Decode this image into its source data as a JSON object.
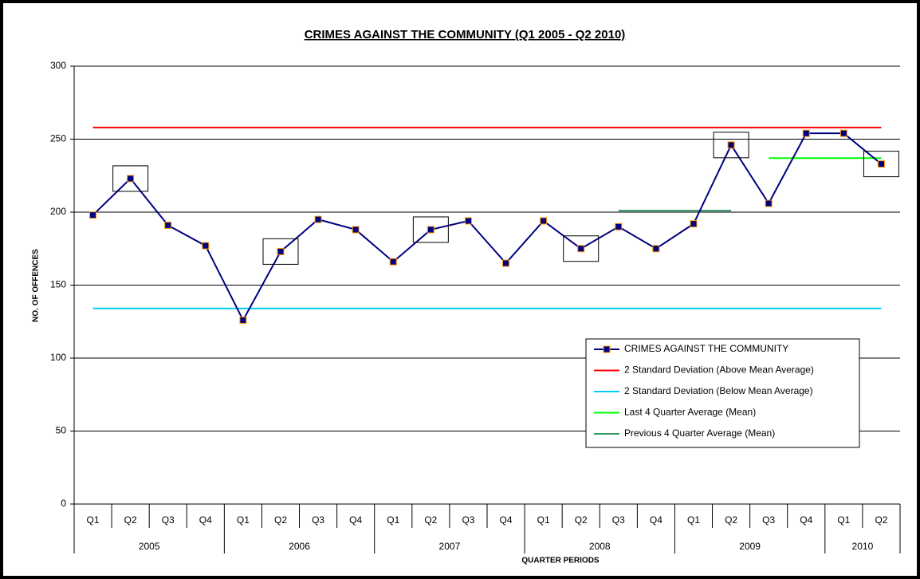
{
  "chart_data": {
    "type": "line",
    "title": "CRIMES AGAINST THE COMMUNITY (Q1 2005 - Q2 2010)",
    "x_label": "QUARTER PERIODS",
    "y_label": "NO. OF OFFENCES",
    "groups": [
      {
        "label": "2005",
        "categories": [
          "Q1",
          "Q2",
          "Q3",
          "Q4"
        ]
      },
      {
        "label": "2006",
        "categories": [
          "Q1",
          "Q2",
          "Q3",
          "Q4"
        ]
      },
      {
        "label": "2007",
        "categories": [
          "Q1",
          "Q2",
          "Q3",
          "Q4"
        ]
      },
      {
        "label": "2008",
        "categories": [
          "Q1",
          "Q2",
          "Q3",
          "Q4"
        ]
      },
      {
        "label": "2009",
        "categories": [
          "Q1",
          "Q2",
          "Q3",
          "Q4"
        ]
      },
      {
        "label": "2010",
        "categories": [
          "Q1",
          "Q2"
        ]
      }
    ],
    "series": [
      {
        "name": "CRIMES AGAINST THE COMMUNITY",
        "color": "#000080",
        "marker_edge": "#ff9900",
        "values": [
          198,
          223,
          191,
          177,
          126,
          173,
          195,
          188,
          166,
          188,
          194,
          165,
          194,
          175,
          190,
          175,
          192,
          246,
          206,
          254,
          254,
          233
        ]
      },
      {
        "name": "2 Standard Deviation (Above Mean Average)",
        "color": "#ff0000",
        "values": [
          258,
          258,
          258,
          258,
          258,
          258,
          258,
          258,
          258,
          258,
          258,
          258,
          258,
          258,
          258,
          258,
          258,
          258,
          258,
          258,
          258,
          258
        ]
      },
      {
        "name": "2 Standard Deviation (Below Mean Average)",
        "color": "#00ccff",
        "values": [
          134,
          134,
          134,
          134,
          134,
          134,
          134,
          134,
          134,
          134,
          134,
          134,
          134,
          134,
          134,
          134,
          134,
          134,
          134,
          134,
          134,
          134
        ]
      },
      {
        "name": "Last 4 Quarter Average (Mean)",
        "color": "#00ff00",
        "values": [
          null,
          null,
          null,
          null,
          null,
          null,
          null,
          null,
          null,
          null,
          null,
          null,
          null,
          null,
          null,
          null,
          null,
          null,
          237,
          237,
          237,
          237
        ]
      },
      {
        "name": "Previous 4 Quarter Average (Mean)",
        "color": "#339966",
        "values": [
          null,
          null,
          null,
          null,
          null,
          null,
          null,
          null,
          null,
          null,
          null,
          null,
          null,
          null,
          201,
          201,
          201,
          201,
          null,
          null,
          null,
          null
        ]
      }
    ],
    "ylim": [
      0,
      300
    ],
    "yticks": [
      0,
      50,
      100,
      150,
      200,
      250,
      300
    ],
    "grid": true
  }
}
